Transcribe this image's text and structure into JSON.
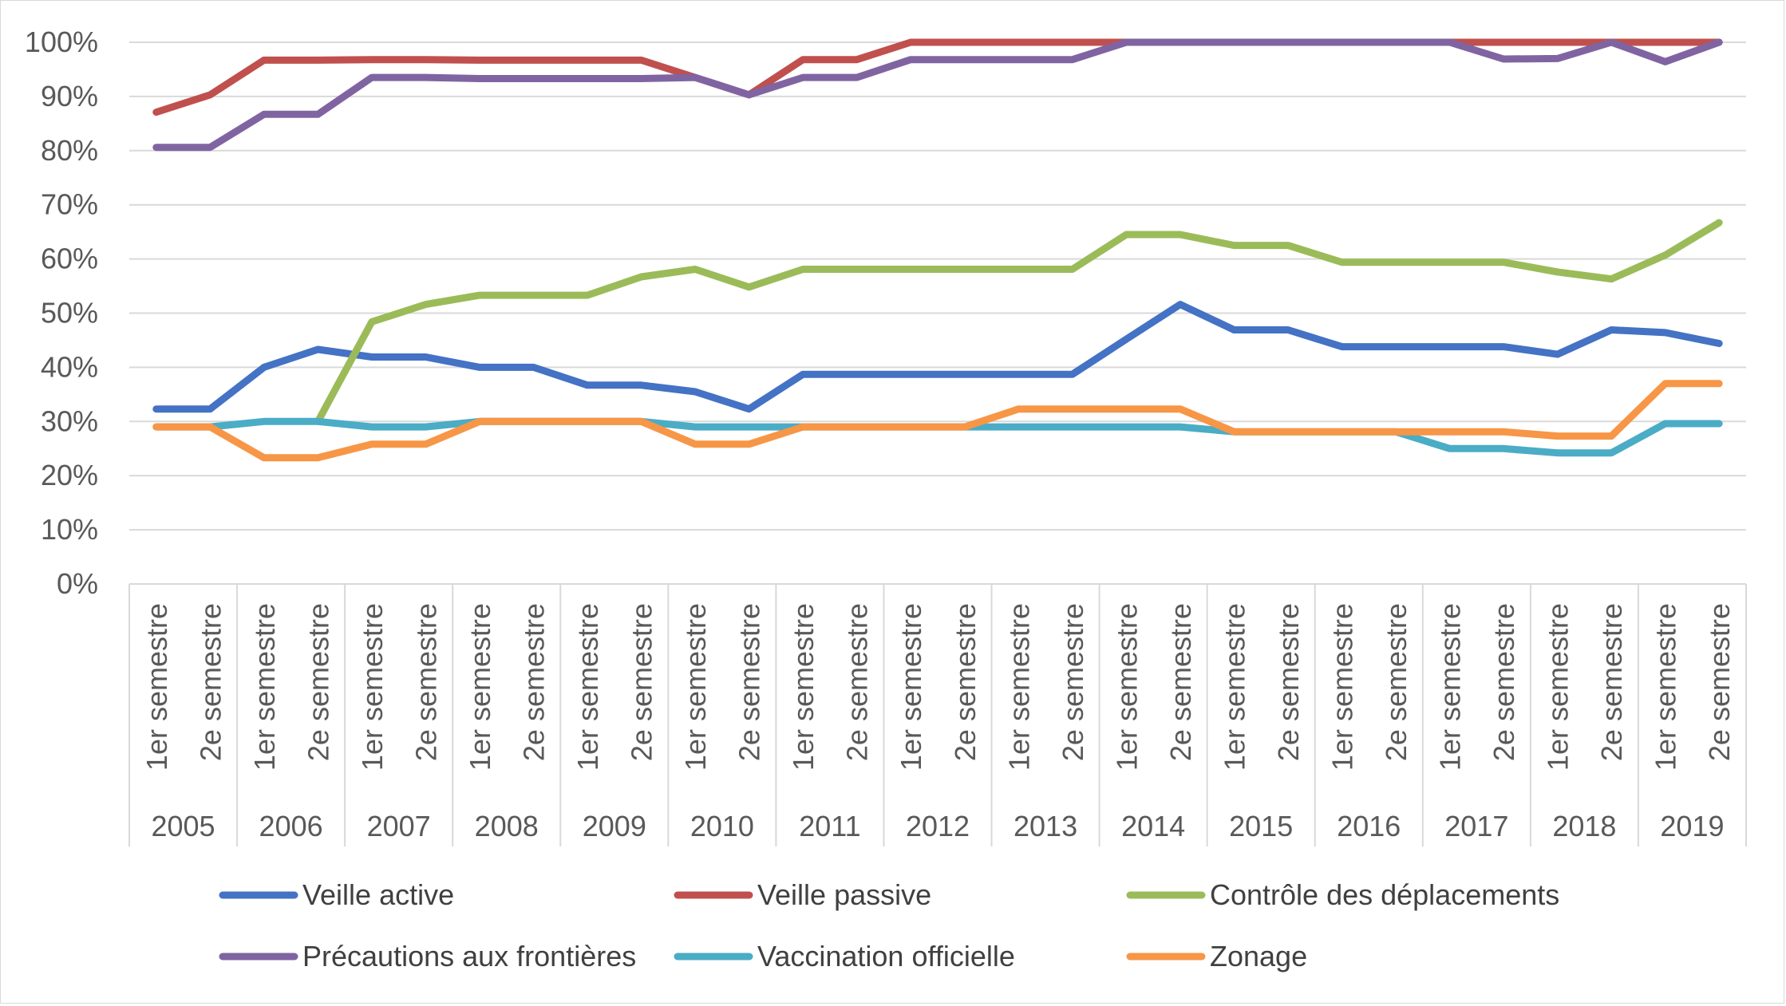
{
  "chart_data": {
    "type": "line",
    "title": "",
    "xlabel": "",
    "ylabel": "",
    "ylim": [
      0,
      100
    ],
    "y_ticks": [
      "0%",
      "10%",
      "20%",
      "30%",
      "40%",
      "50%",
      "60%",
      "70%",
      "80%",
      "90%",
      "100%"
    ],
    "grid": true,
    "legend_position": "bottom",
    "years": [
      "2005",
      "2006",
      "2007",
      "2008",
      "2009",
      "2010",
      "2011",
      "2012",
      "2013",
      "2014",
      "2015",
      "2016",
      "2017",
      "2018",
      "2019"
    ],
    "semesters": [
      "1er semestre",
      "2e semestre"
    ],
    "series": [
      {
        "name": "Veille active",
        "color": "#4472C4",
        "values": [
          32.3,
          32.3,
          40,
          43.3,
          41.9,
          41.9,
          40,
          40,
          36.7,
          36.7,
          35.5,
          32.3,
          38.7,
          38.7,
          38.7,
          38.7,
          38.7,
          38.7,
          45.2,
          51.6,
          46.9,
          46.9,
          43.8,
          43.8,
          43.8,
          43.8,
          42.4,
          46.9,
          46.4,
          44.4
        ]
      },
      {
        "name": "Veille passive",
        "color": "#C0504D",
        "values": [
          87.1,
          90.3,
          96.7,
          96.7,
          96.8,
          96.8,
          96.7,
          96.7,
          96.7,
          96.7,
          93.5,
          90.3,
          96.8,
          96.8,
          100,
          100,
          100,
          100,
          100,
          100,
          100,
          100,
          100,
          100,
          100,
          100,
          100,
          100,
          100,
          100
        ]
      },
      {
        "name": "Contrôle des déplacements",
        "color": "#9BBB59",
        "values": [
          null,
          null,
          null,
          30,
          48.4,
          51.6,
          53.3,
          53.3,
          53.3,
          56.7,
          58.1,
          54.8,
          58.1,
          58.1,
          58.1,
          58.1,
          58.1,
          58.1,
          64.5,
          64.5,
          62.5,
          62.5,
          59.4,
          59.4,
          59.4,
          59.4,
          57.6,
          56.3,
          60.7,
          66.7
        ]
      },
      {
        "name": "Précautions aux frontières",
        "color": "#8064A2",
        "values": [
          80.6,
          80.6,
          86.7,
          86.7,
          93.5,
          93.5,
          93.3,
          93.3,
          93.3,
          93.3,
          93.5,
          90.3,
          93.5,
          93.5,
          96.8,
          96.8,
          96.8,
          96.8,
          100,
          100,
          100,
          100,
          100,
          100,
          100,
          96.9,
          97,
          100,
          96.4,
          100
        ]
      },
      {
        "name": "Vaccination officielle",
        "color": "#4BACC6",
        "values": [
          29,
          29,
          30,
          30,
          29,
          29,
          30,
          30,
          30,
          30,
          29,
          29,
          29,
          29,
          29,
          29,
          29,
          29,
          29,
          29,
          28.1,
          28.1,
          28.1,
          28.1,
          25,
          25,
          24.2,
          24.2,
          29.6,
          29.6
        ]
      },
      {
        "name": "Zonage",
        "color": "#F79646",
        "values": [
          29,
          29,
          23.3,
          23.3,
          25.8,
          25.8,
          30,
          30,
          30,
          30,
          25.8,
          25.8,
          29,
          29,
          29,
          29,
          32.3,
          32.3,
          32.3,
          32.3,
          28.1,
          28.1,
          28.1,
          28.1,
          28.1,
          28.1,
          27.3,
          27.3,
          37,
          37
        ]
      }
    ]
  }
}
